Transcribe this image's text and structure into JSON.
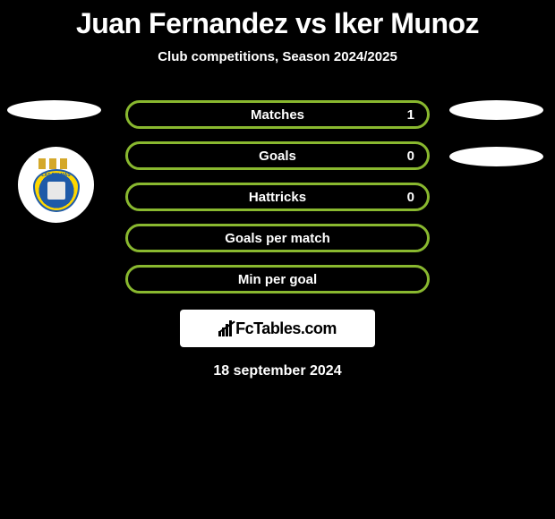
{
  "header": {
    "title": "Juan Fernandez vs Iker Munoz",
    "subtitle": "Club competitions, Season 2024/2025"
  },
  "stats": [
    {
      "label": "Matches",
      "value": "1",
      "border_color": "#89b82f",
      "has_value": true
    },
    {
      "label": "Goals",
      "value": "0",
      "border_color": "#89b82f",
      "has_value": true
    },
    {
      "label": "Hattricks",
      "value": "0",
      "border_color": "#89b82f",
      "has_value": true
    },
    {
      "label": "Goals per match",
      "value": "",
      "border_color": "#89b82f",
      "has_value": false
    },
    {
      "label": "Min per goal",
      "value": "",
      "border_color": "#89b82f",
      "has_value": false
    }
  ],
  "footer": {
    "brand": "FcTables.com",
    "date": "18 september 2024"
  },
  "styling": {
    "background_color": "#000000",
    "text_color": "#ffffff",
    "title_fontsize": 32,
    "subtitle_fontsize": 15,
    "stat_fontsize": 15,
    "badge_bg": "#ffffff",
    "badge_text_color": "#000000",
    "ellipse_color": "#ffffff",
    "club_badge_bg": "#ffffff",
    "club_colors": {
      "blue": "#1e5aa8",
      "yellow": "#ffd700",
      "gold": "#d4a82a"
    }
  },
  "branding": {
    "club_name": "LAS PALMAS"
  }
}
